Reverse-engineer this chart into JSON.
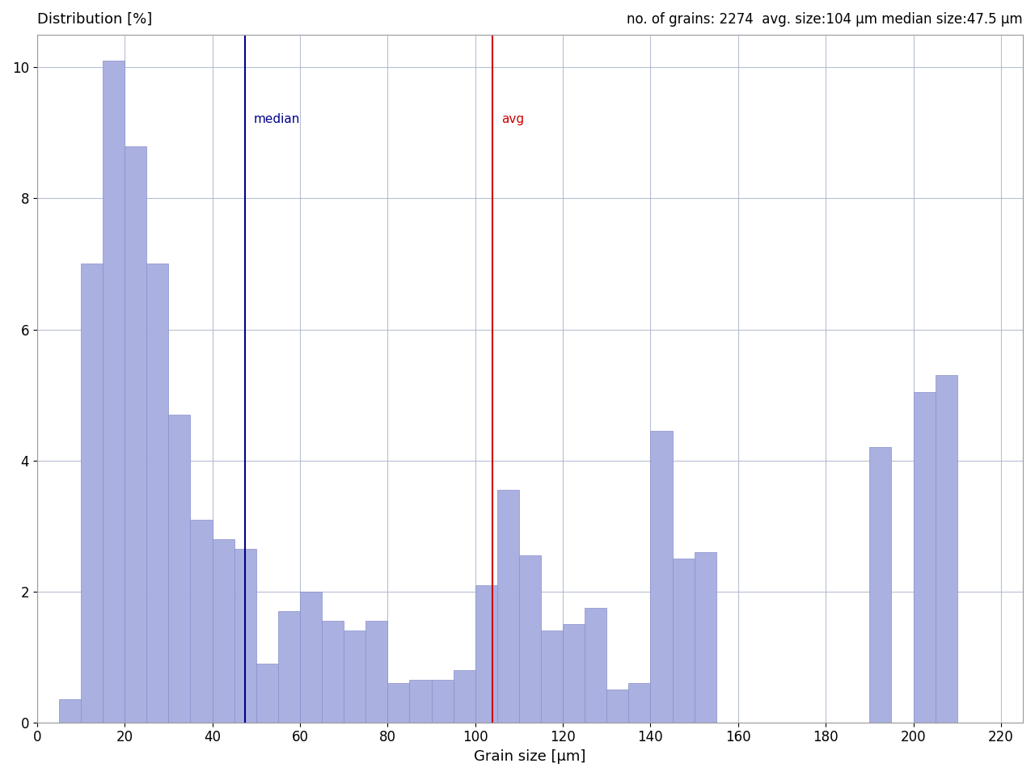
{
  "title_left": "Distribution [%]",
  "title_right": "no. of grains: 2274  avg. size:104 μm median size:47.5 μm",
  "xlabel": "Grain size [μm]",
  "ylabel": "",
  "bar_color": "#aab0e0",
  "bar_edgecolor": "#8890cc",
  "median_value": 47.5,
  "avg_value": 104,
  "xlim": [
    0,
    225
  ],
  "ylim": [
    0,
    10.5
  ],
  "xticks": [
    0,
    20,
    40,
    60,
    80,
    100,
    120,
    140,
    160,
    180,
    200,
    220
  ],
  "yticks": [
    0,
    2,
    4,
    6,
    8,
    10
  ],
  "bin_width": 5,
  "bins_left": [
    5,
    10,
    15,
    20,
    25,
    30,
    35,
    40,
    45,
    50,
    55,
    60,
    65,
    70,
    75,
    80,
    85,
    90,
    95,
    100,
    105,
    110,
    115,
    120,
    125,
    130,
    135,
    140,
    145,
    150,
    155,
    160,
    165,
    170,
    175,
    180,
    185,
    190,
    195,
    200,
    205,
    210,
    215,
    220
  ],
  "bar_heights": [
    0.35,
    7.0,
    10.1,
    8.8,
    7.0,
    4.7,
    3.1,
    2.8,
    2.65,
    0.9,
    1.7,
    2.0,
    1.55,
    1.4,
    1.55,
    0.6,
    0.65,
    0.65,
    0.8,
    2.1,
    3.55,
    2.55,
    1.4,
    1.5,
    1.75,
    0.5,
    0.6,
    4.45,
    2.5,
    2.6,
    0.0,
    0.0,
    0.0,
    0.0,
    0.0,
    0.0,
    0.0,
    4.2,
    0.0,
    5.05,
    5.3,
    0.0,
    0.0,
    0.0
  ],
  "background_color": "#ffffff",
  "grid_color": "#b0b8d0",
  "median_color": "#00008b",
  "avg_color": "#cc0000",
  "median_label": "median",
  "avg_label": "avg"
}
